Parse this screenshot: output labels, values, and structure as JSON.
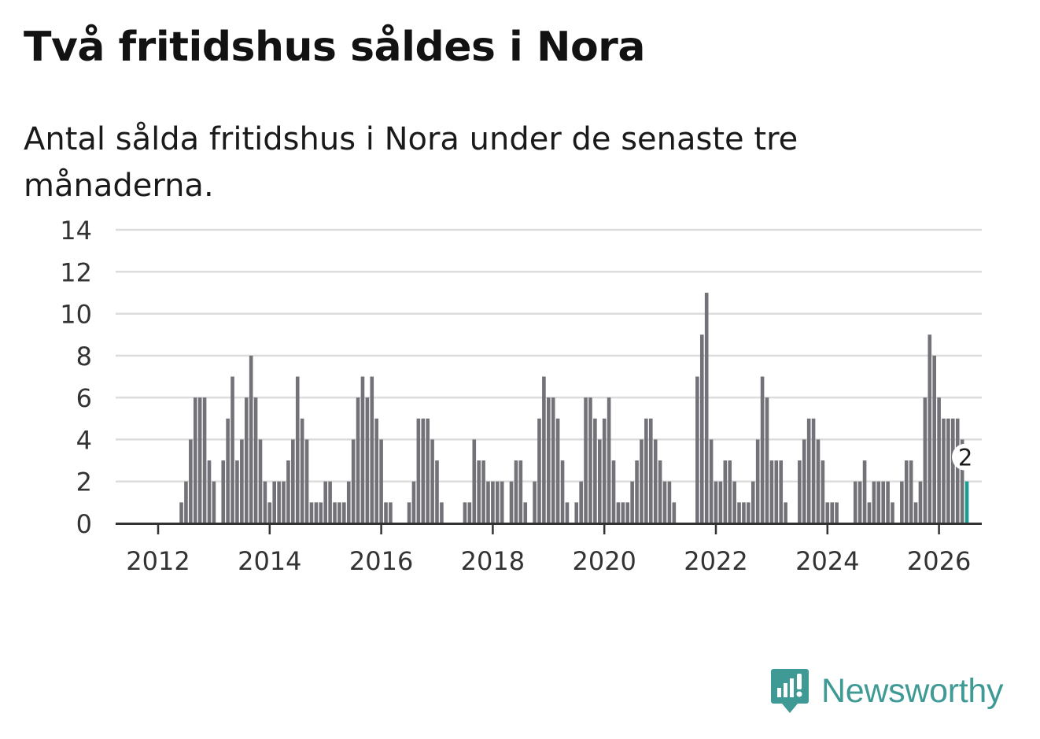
{
  "header": {
    "title": "Två fritidshus såldes i Nora",
    "subtitle": "Antal sålda fritidshus i Nora under de senaste tre månaderna."
  },
  "brand": {
    "name": "Newsworthy",
    "color": "#3f9a96",
    "icon": "newsworthy-logo-icon"
  },
  "colors": {
    "bar": "#737278",
    "highlight": "#1a9e93",
    "grid": "#dcdcdc",
    "axis": "#333333"
  },
  "chart_data": {
    "type": "bar",
    "title": "Två fritidshus såldes i Nora",
    "subtitle": "Antal sålda fritidshus i Nora under de senaste tre månaderna.",
    "xlabel": "",
    "ylabel": "",
    "ylim": [
      0,
      14
    ],
    "yticks": [
      "0",
      "2",
      "4",
      "6",
      "8",
      "10",
      "12",
      "14"
    ],
    "xticks": [
      "2012",
      "2014",
      "2016",
      "2018",
      "2020",
      "2022",
      "2024",
      "2026"
    ],
    "grid": true,
    "legend": "none",
    "start": "2011-01",
    "frequency": "monthly",
    "highlight_label": "2",
    "values": [
      0,
      0,
      0,
      0,
      0,
      0,
      0,
      0,
      0,
      0,
      0,
      0,
      0,
      0,
      0,
      0,
      0,
      1,
      2,
      4,
      6,
      6,
      6,
      3,
      2,
      0,
      3,
      5,
      7,
      3,
      4,
      6,
      8,
      6,
      4,
      2,
      1,
      2,
      2,
      2,
      3,
      4,
      7,
      5,
      4,
      1,
      1,
      1,
      2,
      2,
      1,
      1,
      1,
      2,
      4,
      6,
      7,
      6,
      7,
      5,
      4,
      1,
      1,
      0,
      0,
      0,
      1,
      2,
      5,
      5,
      5,
      4,
      3,
      1,
      0,
      0,
      0,
      0,
      1,
      1,
      4,
      3,
      3,
      2,
      2,
      2,
      2,
      0,
      2,
      3,
      3,
      1,
      0,
      2,
      5,
      7,
      6,
      6,
      5,
      3,
      1,
      0,
      1,
      2,
      6,
      6,
      5,
      4,
      5,
      6,
      3,
      1,
      1,
      1,
      2,
      3,
      4,
      5,
      5,
      4,
      3,
      2,
      2,
      1,
      0,
      0,
      0,
      0,
      7,
      9,
      11,
      4,
      2,
      2,
      3,
      3,
      2,
      1,
      1,
      1,
      2,
      4,
      7,
      6,
      3,
      3,
      3,
      1,
      0,
      0,
      3,
      4,
      5,
      5,
      4,
      3,
      1,
      1,
      1,
      0,
      0,
      0,
      2,
      2,
      3,
      1,
      2,
      2,
      2,
      2,
      1,
      0,
      2,
      3,
      3,
      1,
      2,
      6,
      9,
      8,
      6,
      5,
      5,
      5,
      5,
      4,
      2
    ]
  }
}
